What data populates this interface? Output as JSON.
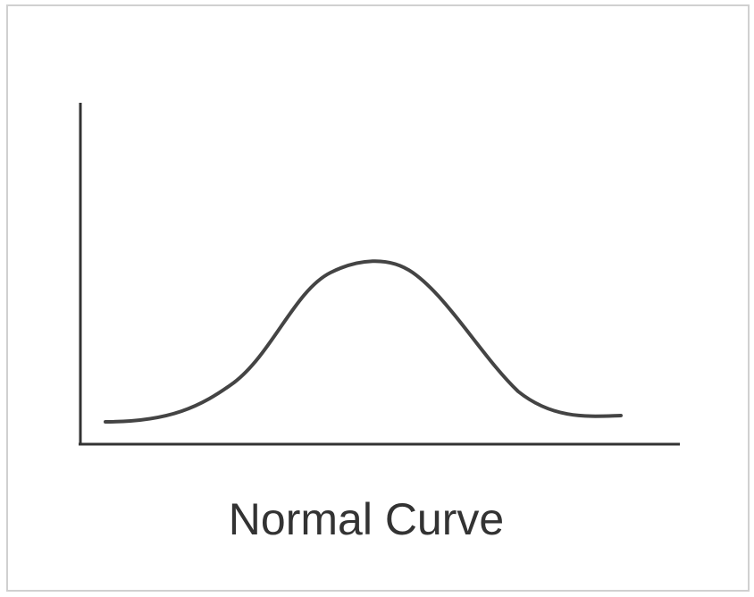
{
  "caption": "Normal Curve"
}
